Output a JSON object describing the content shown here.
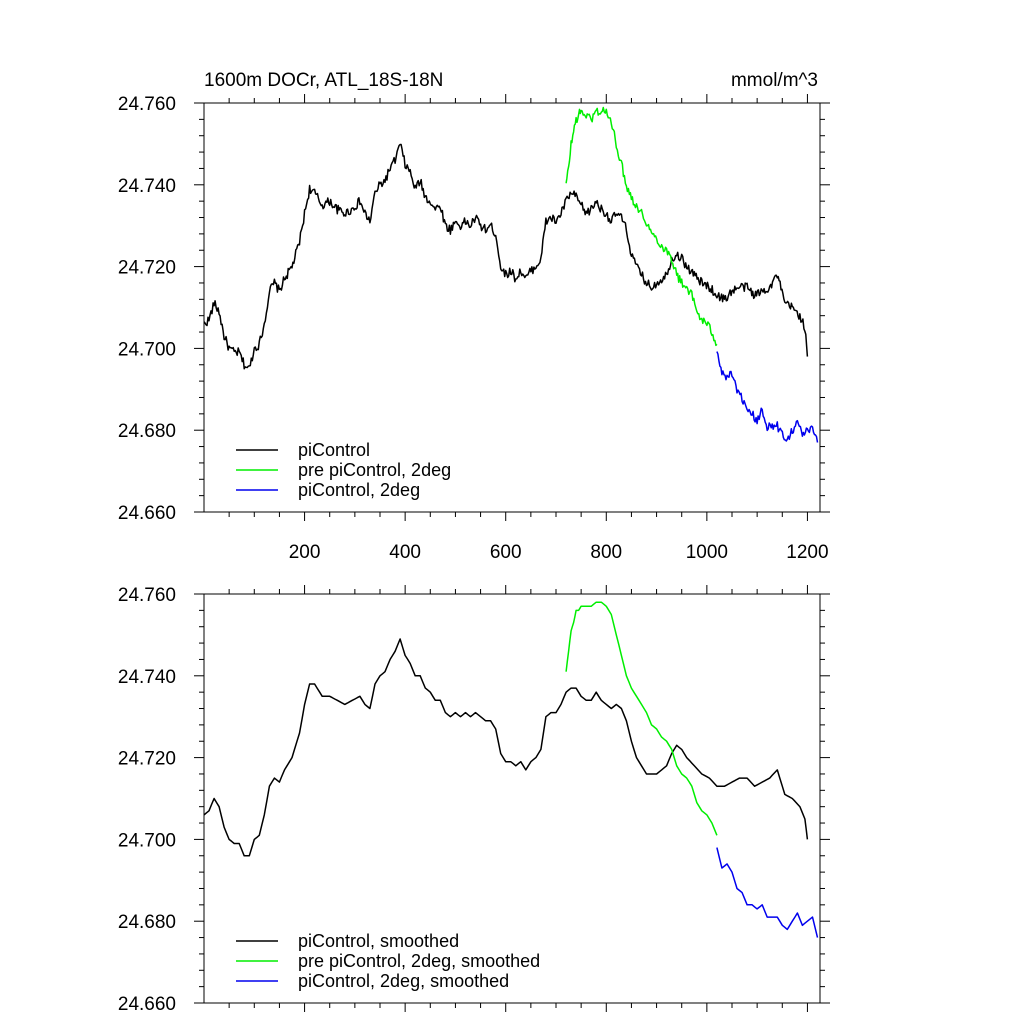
{
  "header": {
    "title": "1600m DOCr, ATL_18S-18N",
    "units": "mmol/m^3"
  },
  "colors": {
    "piControl": "#000000",
    "pre_piControl_2deg": "#00ee00",
    "piControl_2deg": "#0000ee"
  },
  "chart_data": [
    {
      "type": "line",
      "panel": "top",
      "title": "1600m DOCr, ATL_18S-18N",
      "units": "mmol/m^3",
      "xlim": [
        0,
        1225
      ],
      "ylim": [
        24.66,
        24.76
      ],
      "x_ticks": [
        200,
        400,
        600,
        800,
        1000,
        1200
      ],
      "x_tick_labels": [
        "200",
        "400",
        "600",
        "800",
        "1000",
        "1200"
      ],
      "y_ticks": [
        24.66,
        24.68,
        24.7,
        24.72,
        24.74,
        24.76
      ],
      "y_tick_labels": [
        "24.660",
        "24.680",
        "24.700",
        "24.720",
        "24.740",
        "24.760"
      ],
      "legend_position": "bottom-left",
      "grid": false,
      "series": [
        {
          "name": "piControl",
          "color": "#000000",
          "noisy": true,
          "x": [
            0,
            10,
            20,
            30,
            40,
            50,
            60,
            70,
            80,
            90,
            100,
            110,
            120,
            130,
            140,
            150,
            160,
            175,
            190,
            200,
            210,
            220,
            235,
            250,
            265,
            280,
            295,
            310,
            320,
            330,
            340,
            350,
            360,
            370,
            380,
            390,
            400,
            410,
            420,
            430,
            440,
            450,
            460,
            470,
            480,
            490,
            500,
            510,
            520,
            530,
            540,
            550,
            560,
            570,
            580,
            590,
            600,
            610,
            620,
            630,
            640,
            650,
            660,
            670,
            680,
            690,
            700,
            710,
            720,
            730,
            740,
            750,
            760,
            770,
            780,
            790,
            800,
            810,
            820,
            830,
            840,
            850,
            860,
            870,
            880,
            890,
            900,
            910,
            920,
            930,
            940,
            950,
            960,
            975,
            990,
            1005,
            1020,
            1035,
            1050,
            1065,
            1080,
            1095,
            1110,
            1125,
            1140,
            1155,
            1170,
            1185,
            1195,
            1200
          ],
          "y": [
            24.706,
            24.707,
            24.711,
            24.709,
            24.703,
            24.7,
            24.699,
            24.699,
            24.696,
            24.695,
            24.7,
            24.701,
            24.706,
            24.714,
            24.716,
            24.714,
            24.717,
            24.72,
            24.726,
            24.733,
            24.739,
            24.738,
            24.735,
            24.736,
            24.734,
            24.733,
            24.734,
            24.736,
            24.733,
            24.731,
            24.738,
            24.74,
            24.741,
            24.744,
            24.746,
            24.75,
            24.745,
            24.743,
            24.739,
            24.741,
            24.737,
            24.736,
            24.734,
            24.735,
            24.73,
            24.729,
            24.731,
            24.73,
            24.731,
            24.73,
            24.732,
            24.73,
            24.729,
            24.73,
            24.728,
            24.72,
            24.718,
            24.719,
            24.717,
            24.719,
            24.717,
            24.719,
            24.72,
            24.722,
            24.731,
            24.732,
            24.731,
            24.733,
            24.736,
            24.738,
            24.737,
            24.735,
            24.733,
            24.734,
            24.736,
            24.734,
            24.733,
            24.731,
            24.733,
            24.732,
            24.729,
            24.723,
            24.72,
            24.718,
            24.716,
            24.715,
            24.716,
            24.717,
            24.718,
            24.722,
            24.723,
            24.722,
            24.72,
            24.718,
            24.716,
            24.715,
            24.713,
            24.712,
            24.714,
            24.715,
            24.715,
            24.713,
            24.714,
            24.715,
            24.718,
            24.711,
            24.71,
            24.708,
            24.705,
            24.698
          ]
        },
        {
          "name": "pre piControl, 2deg",
          "color": "#00ee00",
          "noisy": true,
          "x": [
            720,
            725,
            730,
            735,
            740,
            745,
            750,
            760,
            770,
            780,
            790,
            800,
            810,
            820,
            830,
            840,
            850,
            860,
            870,
            880,
            890,
            900,
            910,
            920,
            930,
            940,
            950,
            960,
            970,
            980,
            990,
            1000,
            1010,
            1020
          ],
          "y": [
            24.74,
            24.744,
            24.75,
            24.753,
            24.756,
            24.757,
            24.758,
            24.757,
            24.756,
            24.758,
            24.758,
            24.758,
            24.755,
            24.75,
            24.745,
            24.74,
            24.737,
            24.735,
            24.733,
            24.731,
            24.728,
            24.727,
            24.725,
            24.724,
            24.722,
            24.718,
            24.716,
            24.715,
            24.713,
            24.709,
            24.707,
            24.706,
            24.704,
            24.701
          ]
        },
        {
          "name": "piControl, 2deg",
          "color": "#0000ee",
          "noisy": true,
          "x": [
            1020,
            1030,
            1040,
            1050,
            1060,
            1070,
            1080,
            1090,
            1100,
            1110,
            1120,
            1130,
            1140,
            1150,
            1160,
            1170,
            1180,
            1190,
            1200,
            1210,
            1220
          ],
          "y": [
            24.699,
            24.694,
            24.693,
            24.694,
            24.689,
            24.688,
            24.684,
            24.684,
            24.682,
            24.685,
            24.681,
            24.681,
            24.681,
            24.679,
            24.678,
            24.68,
            24.682,
            24.679,
            24.68,
            24.68,
            24.677
          ]
        }
      ]
    },
    {
      "type": "line",
      "panel": "bottom",
      "xlim": [
        0,
        1225
      ],
      "ylim": [
        24.66,
        24.76
      ],
      "x_ticks": [
        200,
        400,
        600,
        800,
        1000,
        1200
      ],
      "y_ticks": [
        24.66,
        24.68,
        24.7,
        24.72,
        24.74,
        24.76
      ],
      "y_tick_labels": [
        "24.660",
        "24.680",
        "24.700",
        "24.720",
        "24.740",
        "24.760"
      ],
      "legend_position": "bottom-left",
      "grid": false,
      "series": [
        {
          "name": "piControl, smoothed",
          "color": "#000000",
          "noisy": false,
          "x": [
            0,
            10,
            20,
            30,
            40,
            50,
            60,
            70,
            80,
            90,
            100,
            110,
            120,
            130,
            140,
            150,
            160,
            175,
            190,
            200,
            210,
            220,
            235,
            250,
            265,
            280,
            295,
            310,
            320,
            330,
            340,
            350,
            360,
            370,
            380,
            390,
            400,
            410,
            420,
            430,
            440,
            450,
            460,
            470,
            480,
            490,
            500,
            510,
            520,
            530,
            540,
            550,
            560,
            570,
            580,
            590,
            600,
            610,
            620,
            630,
            640,
            650,
            660,
            670,
            680,
            690,
            700,
            710,
            720,
            730,
            740,
            750,
            760,
            770,
            780,
            790,
            800,
            810,
            820,
            830,
            840,
            850,
            860,
            870,
            880,
            890,
            900,
            910,
            920,
            930,
            940,
            950,
            960,
            975,
            990,
            1005,
            1020,
            1035,
            1050,
            1065,
            1080,
            1095,
            1110,
            1125,
            1140,
            1155,
            1170,
            1185,
            1195,
            1200
          ],
          "y": [
            24.706,
            24.707,
            24.71,
            24.708,
            24.703,
            24.7,
            24.699,
            24.699,
            24.696,
            24.696,
            24.7,
            24.701,
            24.706,
            24.713,
            24.715,
            24.714,
            24.717,
            24.72,
            24.726,
            24.733,
            24.738,
            24.738,
            24.735,
            24.735,
            24.734,
            24.733,
            24.734,
            24.735,
            24.733,
            24.732,
            24.738,
            24.74,
            24.741,
            24.744,
            24.746,
            24.749,
            24.745,
            24.743,
            24.74,
            24.74,
            24.737,
            24.736,
            24.734,
            24.734,
            24.731,
            24.73,
            24.731,
            24.73,
            24.731,
            24.73,
            24.731,
            24.73,
            24.729,
            24.729,
            24.727,
            24.721,
            24.719,
            24.719,
            24.718,
            24.719,
            24.717,
            24.719,
            24.72,
            24.722,
            24.73,
            24.731,
            24.731,
            24.733,
            24.736,
            24.737,
            24.737,
            24.735,
            24.734,
            24.734,
            24.736,
            24.734,
            24.733,
            24.732,
            24.733,
            24.732,
            24.729,
            24.724,
            24.72,
            24.718,
            24.716,
            24.716,
            24.716,
            24.717,
            24.718,
            24.721,
            24.723,
            24.722,
            24.72,
            24.718,
            24.716,
            24.715,
            24.713,
            24.713,
            24.714,
            24.715,
            24.715,
            24.713,
            24.714,
            24.715,
            24.717,
            24.711,
            24.71,
            24.708,
            24.705,
            24.7
          ]
        },
        {
          "name": "pre piControl, 2deg, smoothed",
          "color": "#00ee00",
          "noisy": false,
          "x": [
            720,
            725,
            730,
            735,
            740,
            745,
            750,
            760,
            770,
            780,
            790,
            800,
            810,
            820,
            830,
            840,
            850,
            860,
            870,
            880,
            890,
            900,
            910,
            920,
            930,
            940,
            950,
            960,
            970,
            980,
            990,
            1000,
            1010,
            1020
          ],
          "y": [
            24.741,
            24.746,
            24.751,
            24.753,
            24.756,
            24.756,
            24.757,
            24.757,
            24.757,
            24.758,
            24.758,
            24.757,
            24.755,
            24.75,
            24.745,
            24.74,
            24.737,
            24.735,
            24.733,
            24.731,
            24.728,
            24.727,
            24.725,
            24.724,
            24.722,
            24.718,
            24.716,
            24.715,
            24.713,
            24.709,
            24.707,
            24.706,
            24.704,
            24.701
          ]
        },
        {
          "name": "piControl, 2deg, smoothed",
          "color": "#0000ee",
          "noisy": false,
          "x": [
            1020,
            1030,
            1040,
            1050,
            1060,
            1070,
            1080,
            1090,
            1100,
            1110,
            1120,
            1130,
            1140,
            1150,
            1160,
            1170,
            1180,
            1190,
            1200,
            1210,
            1220
          ],
          "y": [
            24.698,
            24.693,
            24.694,
            24.692,
            24.688,
            24.687,
            24.684,
            24.684,
            24.683,
            24.684,
            24.681,
            24.681,
            24.681,
            24.679,
            24.678,
            24.68,
            24.682,
            24.679,
            24.68,
            24.681,
            24.676
          ]
        }
      ]
    }
  ]
}
